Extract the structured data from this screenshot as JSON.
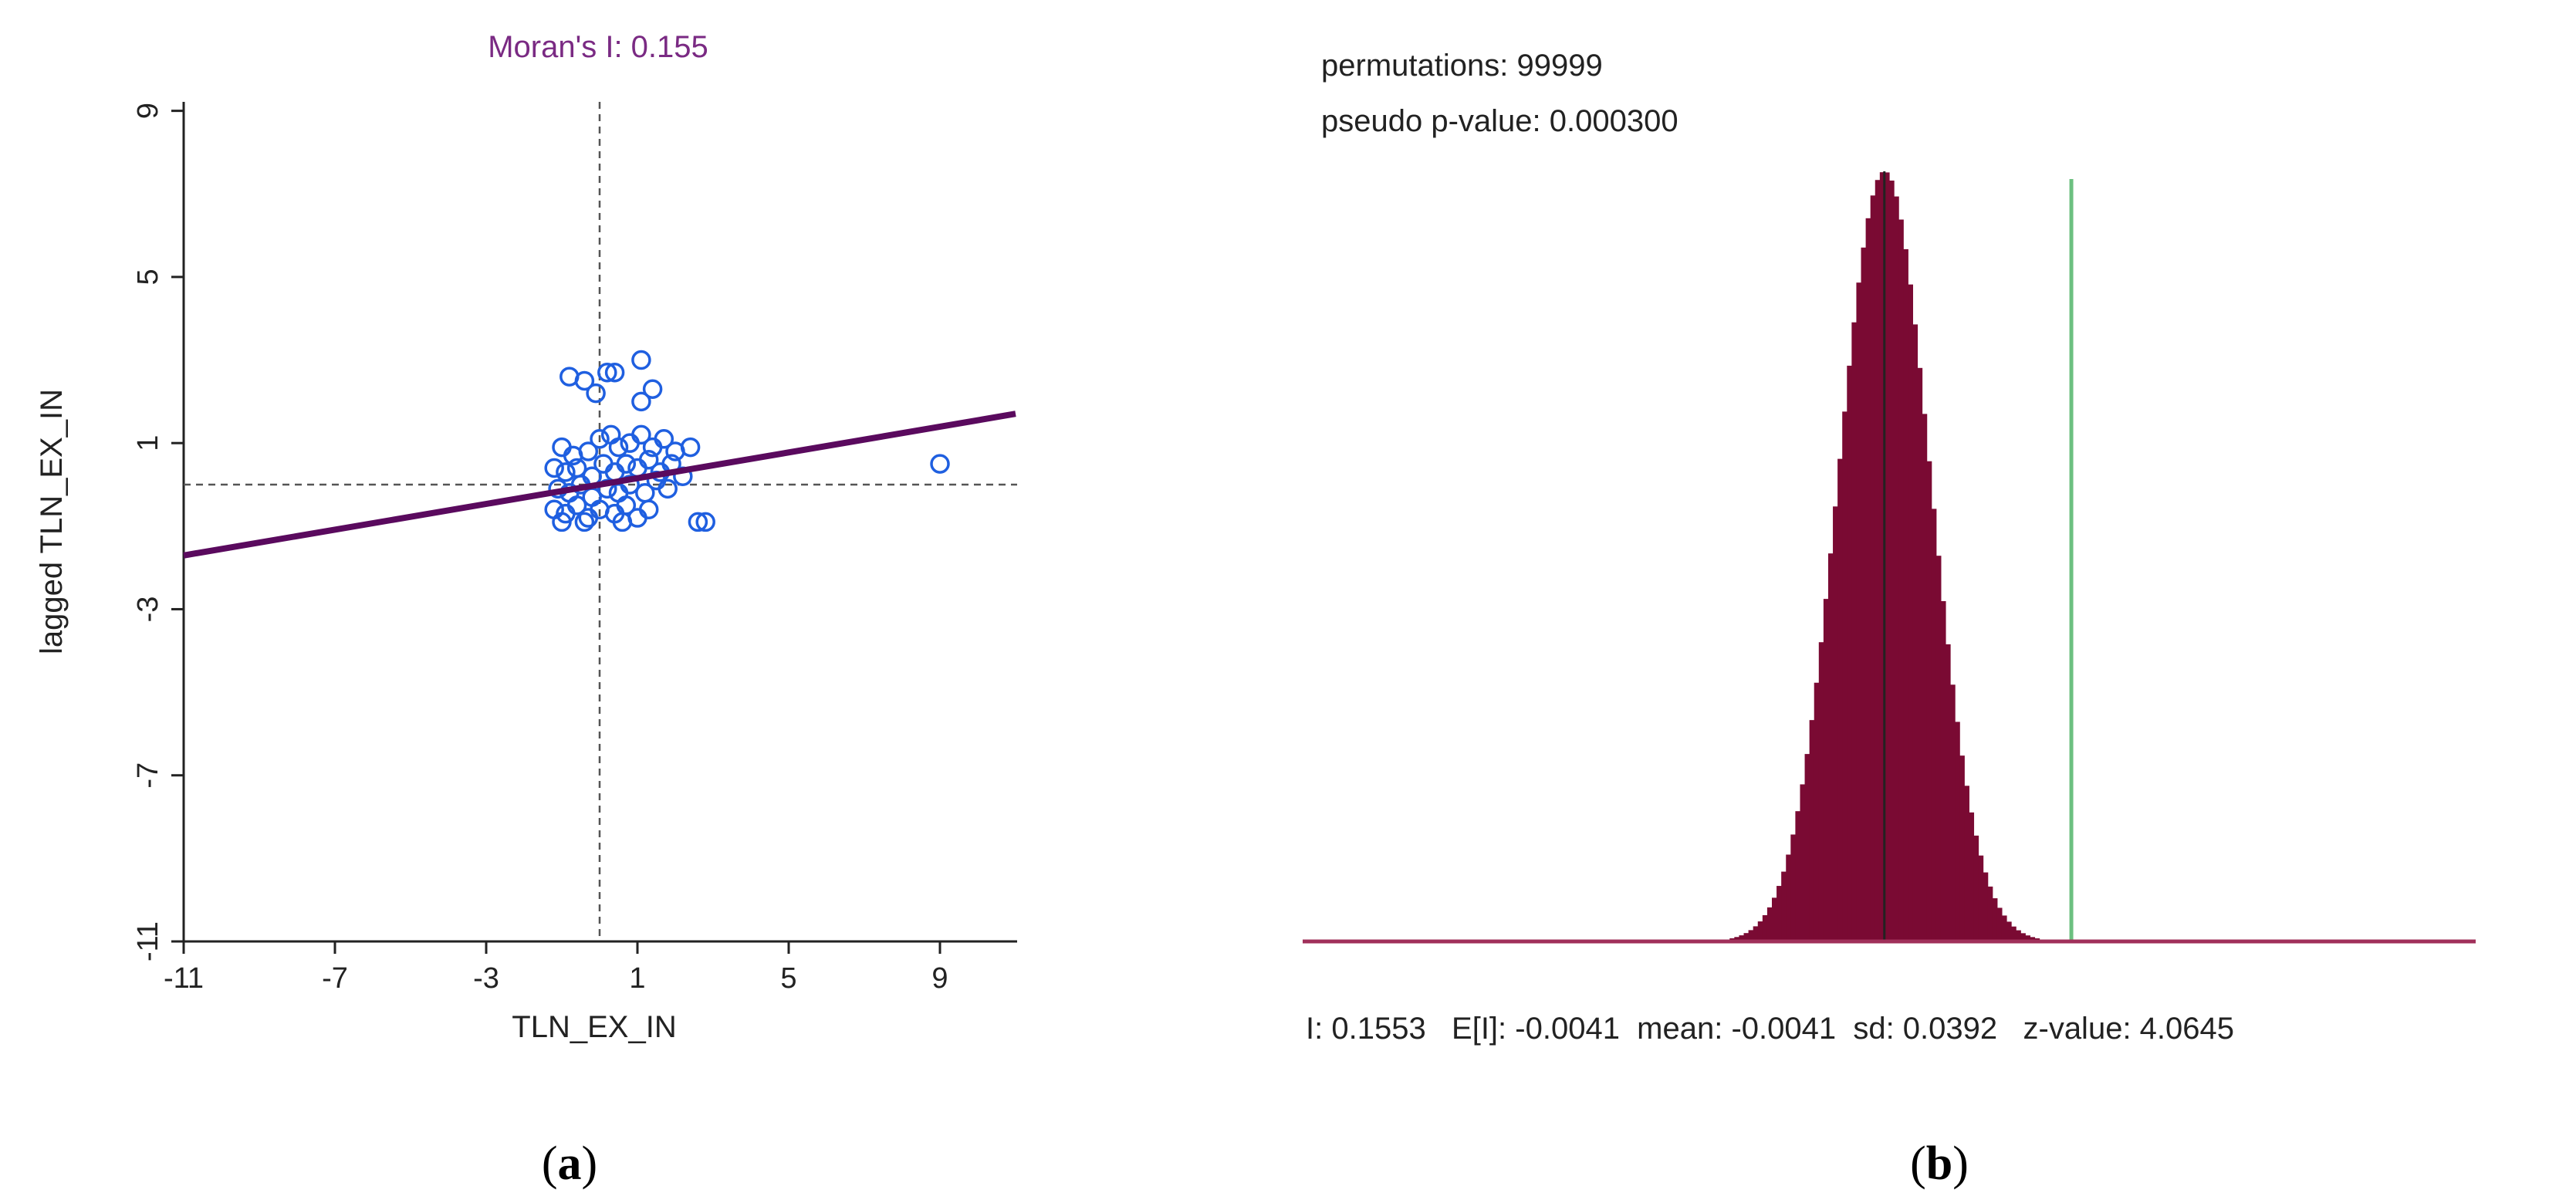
{
  "panel_a": {
    "label_open": "(",
    "label_letter": "a",
    "label_close": ")"
  },
  "panel_b": {
    "label_open": "(",
    "label_letter": "b",
    "label_close": ")",
    "permutations_text": "permutations: 99999",
    "pvalue_text": "pseudo p-value: 0.000300",
    "stats_text": "I: 0.1553   E[I]: -0.0041  mean: -0.0041  sd: 0.0392   z-value: 4.0645"
  },
  "colors": {
    "scatter_points": "#1f5fe0",
    "regression_line": "#5a0a5e",
    "title": "#7a2a83",
    "histogram": "#7a0a33",
    "observed_line": "#6cc080",
    "baseline": "#a0305a"
  },
  "chart_data": [
    {
      "type": "scatter",
      "title": "Moran's I: 0.155",
      "xlabel": "TLN_EX_IN",
      "ylabel": "lagged TLN_EX_IN",
      "xlim": [
        -11,
        11
      ],
      "ylim": [
        -11,
        11
      ],
      "xticks": [
        "-11",
        "-7",
        "-3",
        "1",
        "5",
        "9"
      ],
      "yticks": [
        "-11",
        "-7",
        "-3",
        "1",
        "5",
        "9"
      ],
      "xtick_values": [
        -11,
        -7,
        -3,
        1,
        5,
        9
      ],
      "ytick_values": [
        -11,
        -7,
        -3,
        1,
        5,
        9
      ],
      "mean_x": 0,
      "mean_y": 0,
      "regression_slope": 0.155,
      "regression_intercept": 0.0,
      "grid": false,
      "points": [
        {
          "x": -0.8,
          "y": 2.6
        },
        {
          "x": -0.4,
          "y": 2.5
        },
        {
          "x": 0.2,
          "y": 2.7
        },
        {
          "x": 0.4,
          "y": 2.7
        },
        {
          "x": 1.1,
          "y": 2.0
        },
        {
          "x": 1.1,
          "y": 3.0
        },
        {
          "x": 1.4,
          "y": 2.3
        },
        {
          "x": -0.1,
          "y": 2.2
        },
        {
          "x": -1.0,
          "y": 0.9
        },
        {
          "x": -0.7,
          "y": 0.7
        },
        {
          "x": -0.3,
          "y": 0.8
        },
        {
          "x": 0.0,
          "y": 1.1
        },
        {
          "x": 0.3,
          "y": 1.2
        },
        {
          "x": 0.5,
          "y": 0.9
        },
        {
          "x": 0.8,
          "y": 1.0
        },
        {
          "x": 1.1,
          "y": 1.2
        },
        {
          "x": 1.4,
          "y": 0.9
        },
        {
          "x": 1.7,
          "y": 1.1
        },
        {
          "x": 2.0,
          "y": 0.8
        },
        {
          "x": 2.4,
          "y": 0.9
        },
        {
          "x": -1.2,
          "y": 0.4
        },
        {
          "x": -0.9,
          "y": 0.3
        },
        {
          "x": -0.6,
          "y": 0.4
        },
        {
          "x": -0.2,
          "y": 0.2
        },
        {
          "x": 0.1,
          "y": 0.5
        },
        {
          "x": 0.4,
          "y": 0.3
        },
        {
          "x": 0.7,
          "y": 0.5
        },
        {
          "x": 1.0,
          "y": 0.4
        },
        {
          "x": 1.3,
          "y": 0.6
        },
        {
          "x": 1.6,
          "y": 0.3
        },
        {
          "x": 1.9,
          "y": 0.5
        },
        {
          "x": 2.2,
          "y": 0.2
        },
        {
          "x": -1.1,
          "y": -0.1
        },
        {
          "x": -0.8,
          "y": -0.2
        },
        {
          "x": -0.5,
          "y": 0.0
        },
        {
          "x": -0.2,
          "y": -0.3
        },
        {
          "x": 0.2,
          "y": -0.1
        },
        {
          "x": 0.5,
          "y": -0.2
        },
        {
          "x": 0.8,
          "y": 0.0
        },
        {
          "x": 1.2,
          "y": -0.2
        },
        {
          "x": 1.5,
          "y": 0.1
        },
        {
          "x": 1.8,
          "y": -0.1
        },
        {
          "x": -1.2,
          "y": -0.6
        },
        {
          "x": -0.9,
          "y": -0.7
        },
        {
          "x": -0.6,
          "y": -0.5
        },
        {
          "x": -0.3,
          "y": -0.8
        },
        {
          "x": 0.0,
          "y": -0.6
        },
        {
          "x": 0.4,
          "y": -0.7
        },
        {
          "x": 0.7,
          "y": -0.5
        },
        {
          "x": 1.0,
          "y": -0.8
        },
        {
          "x": 1.3,
          "y": -0.6
        },
        {
          "x": -1.0,
          "y": -0.9
        },
        {
          "x": -0.4,
          "y": -0.9
        },
        {
          "x": 0.6,
          "y": -0.9
        },
        {
          "x": 2.6,
          "y": -0.9
        },
        {
          "x": 2.8,
          "y": -0.9
        },
        {
          "x": 9.0,
          "y": 0.5
        }
      ]
    },
    {
      "type": "histogram",
      "title": "",
      "xlabel": "",
      "ylabel": "",
      "xlim": [
        -0.5,
        0.5
      ],
      "grid": false,
      "observed_I": 0.1553,
      "expected_I": -0.0041,
      "mean": -0.0041,
      "sd": 0.0392,
      "z_value": 4.0645,
      "permutations": 99999,
      "pseudo_p_value": 0.0003
    }
  ]
}
